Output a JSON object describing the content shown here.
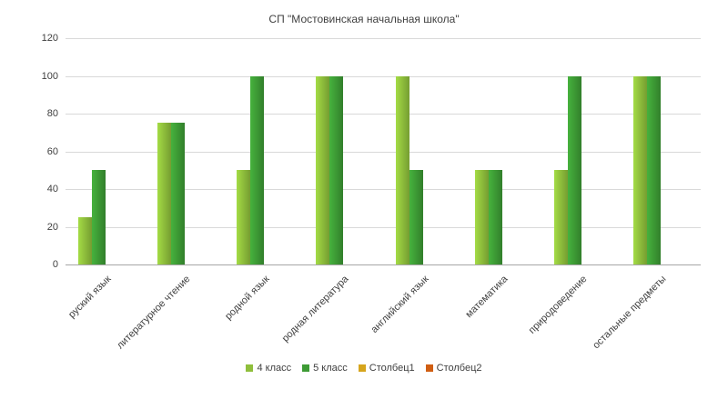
{
  "chart_data": {
    "type": "bar",
    "title": "СП \"Мостовинская начальная школа\"",
    "categories": [
      "руский язык",
      "литературное чтение",
      "родной язык",
      "родная литература",
      "английский язык",
      "математика",
      "природоведение",
      "остальные предметы"
    ],
    "series": [
      {
        "name": "4 класс",
        "color": "#8fbf3c",
        "values": [
          25,
          75,
          50,
          100,
          100,
          50,
          50,
          100
        ]
      },
      {
        "name": "5 класс",
        "color": "#3d9b35",
        "values": [
          50,
          75,
          100,
          100,
          50,
          50,
          100,
          100
        ]
      },
      {
        "name": "Столбец1",
        "color": "#d6a51c",
        "values": []
      },
      {
        "name": "Столбец2",
        "color": "#d05e12",
        "values": []
      }
    ],
    "ylim": [
      0,
      120
    ],
    "yticks": [
      0,
      20,
      40,
      60,
      80,
      100,
      120
    ],
    "grid": true,
    "legend_position": "bottom"
  }
}
